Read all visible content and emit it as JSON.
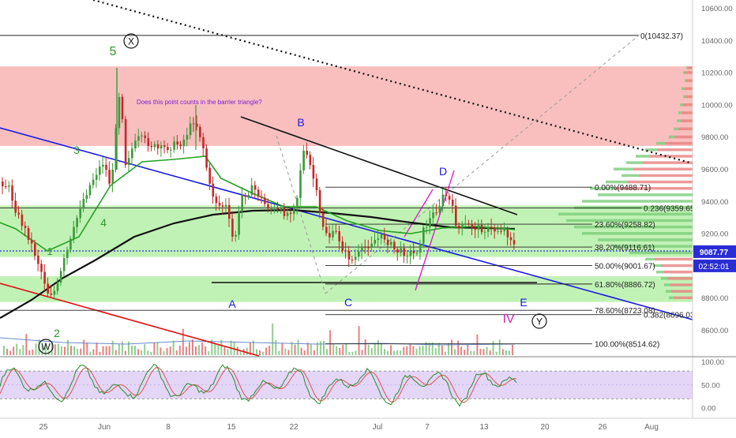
{
  "colors": {
    "background": "#ffffff",
    "resistance_zone": "#f8b4b4",
    "support_zone": "#b6f0a8",
    "stoch_band": "#e3d6f7",
    "candle_up": "#3a9a3a",
    "candle_down": "#c62828",
    "price_tag": "#2a2dd4",
    "time_tag": "#2a2dd4",
    "blue_trend": "#1a1ae0",
    "red_trend": "#e01010",
    "black_line": "#111111",
    "ma_green": "#22a022",
    "channel_magenta": "#e020d0",
    "wave_green": "#2c9a2c",
    "wave_blue": "#1a1ae0",
    "wave_magenta": "#d020c0",
    "annotation": "#7b1fd0"
  },
  "chart_data": [
    {
      "type": "candlestick",
      "instrument_price_tag": "9087.77",
      "time_tag": "02:52:01",
      "y_axis_ticks": [
        "10600.00",
        "10400.00",
        "10200.00",
        "10000.00",
        "9800.00",
        "9600.00",
        "9400.00",
        "9200.00",
        "9000.00",
        "8800.00",
        "8600.00"
      ],
      "x_axis_ticks": [
        "25",
        "Jun",
        "8",
        "15",
        "22",
        "Jul",
        "7",
        "13",
        "20",
        "26",
        "Aug"
      ],
      "ylim": [
        8510,
        10660
      ],
      "zones": [
        {
          "name": "resistance",
          "from": 9745,
          "to": 10240
        },
        {
          "name": "support",
          "from": 9055,
          "to": 9375
        },
        {
          "name": "support",
          "from": 8775,
          "to": 8935
        }
      ],
      "fib_levels": [
        {
          "label": "0(10432.37)",
          "value": 10432.37
        },
        {
          "label": "0.00%(9488.71)",
          "value": 9488.71
        },
        {
          "label": "0.236(9359.65)",
          "value": 9359.65
        },
        {
          "label": "23.60%(9258.82)",
          "value": 9258.82
        },
        {
          "label": "38.20%(9116.61)",
          "value": 9116.61
        },
        {
          "label": "50.00%(9001.67)",
          "value": 9001.67
        },
        {
          "label": "61.80%(8886.72)",
          "value": 8886.72
        },
        {
          "label": "78.60%(8723.08)",
          "value": 8723.08
        },
        {
          "label": "0.382(8696.03)",
          "value": 8696.03
        },
        {
          "label": "100.00%(8514.62)",
          "value": 8514.62
        }
      ],
      "wave_labels": [
        {
          "text": "5",
          "color_key": "wave_green"
        },
        {
          "text": "3",
          "color_key": "wave_green"
        },
        {
          "text": "4",
          "color_key": "wave_green"
        },
        {
          "text": "1",
          "color_key": "wave_green"
        },
        {
          "text": "2",
          "color_key": "wave_green"
        },
        {
          "text": "B",
          "color_key": "wave_blue"
        },
        {
          "text": "D",
          "color_key": "wave_blue"
        },
        {
          "text": "A",
          "color_key": "wave_blue"
        },
        {
          "text": "C",
          "color_key": "wave_blue"
        },
        {
          "text": "E",
          "color_key": "wave_blue"
        },
        {
          "text": "IV",
          "color_key": "wave_magenta"
        }
      ],
      "circled_labels": [
        "X",
        "Y",
        "W"
      ],
      "annotation": "Does this point counts in the barrier triangle?"
    },
    {
      "type": "line",
      "indicator": "stochastic",
      "y_axis_ticks": [
        "100.00",
        "50.00",
        "0.00"
      ],
      "ylim": [
        0,
        100
      ],
      "band": [
        20,
        80
      ]
    }
  ]
}
